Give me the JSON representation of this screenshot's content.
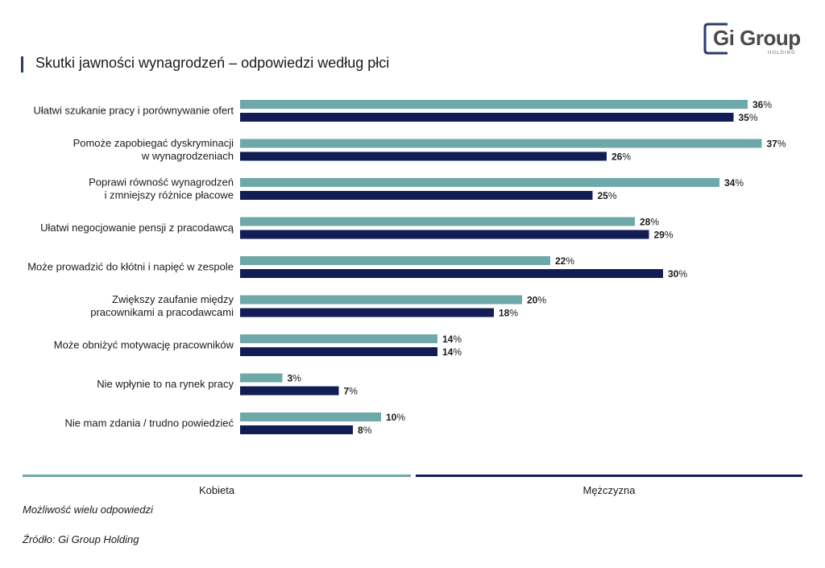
{
  "title": "Skutki jawności wynagrodzeń – odpowiedzi według płci",
  "logo": {
    "text": "Gi Group",
    "sub": "HOLDING"
  },
  "note": "Możliwość wielu odpowiedzi",
  "source": "Źródło: Gi Group Holding",
  "colors": {
    "kobieta": "#6ea8a8",
    "mezczyzna": "#121d56"
  },
  "chart_data": {
    "type": "bar",
    "orientation": "horizontal",
    "categories": [
      [
        "Ułatwi szukanie pracy i porównywanie ofert"
      ],
      [
        "Pomoże zapobiegać dyskryminacji",
        "w wynagrodzeniach"
      ],
      [
        "Poprawi równość wynagrodzeń",
        "i zmniejszy różnice płacowe"
      ],
      [
        "Ułatwi negocjowanie pensji z pracodawcą"
      ],
      [
        "Może prowadzić do kłótni i napięć w zespole"
      ],
      [
        "Zwiększy zaufanie między",
        "pracownikami a pracodawcami"
      ],
      [
        "Może obniżyć motywację pracowników"
      ],
      [
        "Nie wpłynie to na rynek pracy"
      ],
      [
        "Nie mam zdania / trudno powiedzieć"
      ]
    ],
    "series": [
      {
        "name": "Kobieta",
        "values": [
          36,
          37,
          34,
          28,
          22,
          20,
          14,
          3,
          10
        ]
      },
      {
        "name": "Mężczyzna",
        "values": [
          35,
          26,
          25,
          29,
          30,
          18,
          14,
          7,
          8
        ]
      }
    ],
    "value_suffix": "%",
    "legend": "bottom",
    "grid": false
  }
}
